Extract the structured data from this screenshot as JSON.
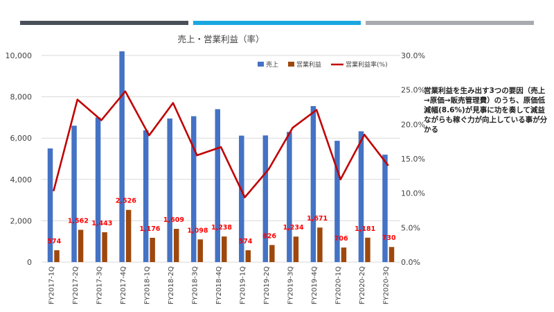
{
  "chart_data": {
    "type": "bar",
    "title": "売上・営業利益（率）",
    "categories": [
      "FY2017-1Q",
      "FY2017-2Q",
      "FY2017-3Q",
      "FY2017-4Q",
      "FY2018-1Q",
      "FY2018-2Q",
      "FY2018-3Q",
      "FY2018-4Q",
      "FY2019-1Q",
      "FY2019-2Q",
      "FY2019-3Q",
      "FY2019-4Q",
      "FY2020-1Q",
      "FY2020-2Q",
      "FY2020-3Q"
    ],
    "series": [
      {
        "name": "売上",
        "type": "bar",
        "axis": "left",
        "color": "#4472c4",
        "values": [
          5500,
          6600,
          7000,
          10200,
          6380,
          6950,
          7060,
          7400,
          6120,
          6130,
          6300,
          7550,
          5870,
          6330,
          5200
        ]
      },
      {
        "name": "営業利益",
        "type": "bar",
        "axis": "left",
        "color": "#9e480e",
        "values": [
          574,
          1562,
          1443,
          2526,
          1176,
          1609,
          1098,
          1238,
          574,
          826,
          1234,
          1671,
          706,
          1181,
          730
        ],
        "data_labels": [
          "574",
          "1,562",
          "1,443",
          "2,526",
          "1,176",
          "1,609",
          "1,098",
          "1,238",
          "574",
          "826",
          "1,234",
          "1,671",
          "706",
          "1,181",
          "730"
        ]
      },
      {
        "name": "営業利益率(%)",
        "type": "line",
        "axis": "right",
        "color": "#c00000",
        "values": [
          10.3,
          23.6,
          20.6,
          24.8,
          18.4,
          23.1,
          15.5,
          16.7,
          9.4,
          13.5,
          19.5,
          22.1,
          12.0,
          18.5,
          14.0
        ]
      }
    ],
    "y_left": {
      "ylim": [
        0,
        10000
      ],
      "ticks": [
        "0",
        "2,000",
        "4,000",
        "6,000",
        "8,000",
        "10,000"
      ]
    },
    "y_right": {
      "ylim": [
        0,
        30
      ],
      "ticks": [
        "0.0%",
        "5.0%",
        "10.0%",
        "15.0%",
        "20.0%",
        "25.0%",
        "30.0%"
      ]
    },
    "legend_position": "top-right",
    "label_color": "#ff0000"
  },
  "side_note": "営業利益を生み出す3つの要因（売上→原価→販売管理費）のうち、原価低減幅(8.6%)が見事に功を奏して減益ながらも稼ぐ力が向上している事が分かる"
}
